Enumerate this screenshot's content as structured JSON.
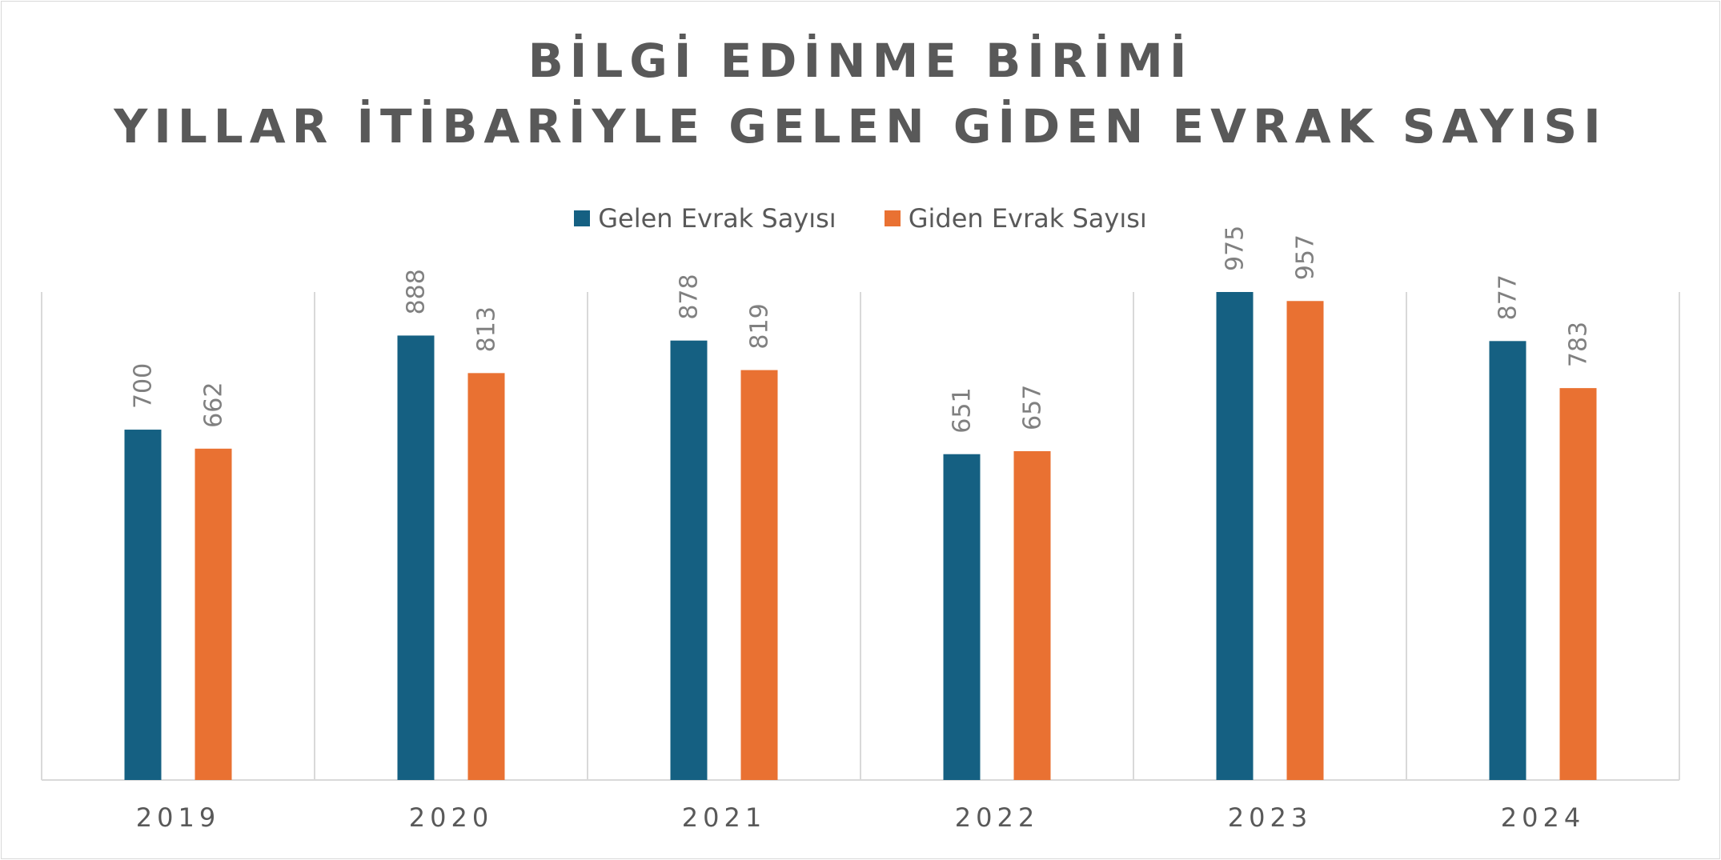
{
  "chart_data": {
    "type": "bar",
    "title": [
      "BİLGİ EDİNME BİRİMİ",
      "YILLAR İTİBARİYLE GELEN GİDEN EVRAK SAYISI"
    ],
    "categories": [
      "2019",
      "2020",
      "2021",
      "2022",
      "2023",
      "2024"
    ],
    "series": [
      {
        "name": "Gelen Evrak Sayısı",
        "color": "#156082",
        "values": [
          700,
          888,
          878,
          651,
          975,
          877
        ]
      },
      {
        "name": "Giden Evrak Sayısı",
        "color": "#E97132",
        "values": [
          662,
          813,
          819,
          657,
          957,
          783
        ]
      }
    ],
    "ylim": [
      0,
      1200
    ],
    "legend": "top",
    "grid": "vertical separators"
  }
}
